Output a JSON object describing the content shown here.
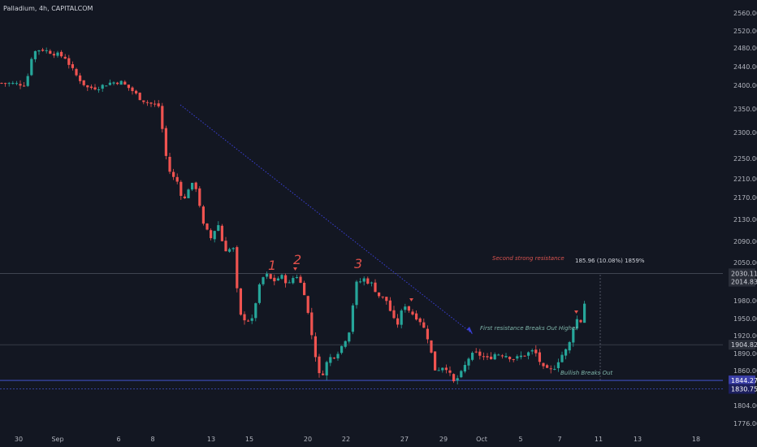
{
  "header": {
    "title": "Palladium, 4h, CAPITALCOM"
  },
  "chart_data": {
    "type": "candlestick",
    "title": "Palladium, 4h, CAPITALCOM",
    "ylim": [
      1758,
      2570
    ],
    "y_ticks": [
      "2560.00",
      "2520.00",
      "2480.00",
      "2440.00",
      "2400.00",
      "2350.00",
      "2300.00",
      "2250.00",
      "2210.00",
      "2170.00",
      "2130.00",
      "2090.00",
      "2050.00",
      "1980.00",
      "1950.00",
      "1920.00",
      "1890.00",
      "1860.00",
      "1804.00",
      "1776.00"
    ],
    "x_ticks": [
      "30",
      "Sep",
      "6",
      "8",
      "13",
      "15",
      "20",
      "22",
      "27",
      "29",
      "Oct",
      "5",
      "7",
      "11",
      "13",
      "18"
    ],
    "levels": {
      "resistance_top": "2030.11",
      "current_price": "2014.83",
      "first_resistance": "1904.82",
      "support_upper": "1844.27",
      "support_lower": "1830.75"
    },
    "annotations": {
      "wave_1": "1",
      "wave_2": "2",
      "wave_3": "3",
      "second_resistance": "Second strong resistance",
      "first_resistance": "First resistance Breaks Out Higher",
      "bullish": "Bullish Breaks Out",
      "measure": "185.96 (10.08%) 1859%"
    },
    "colors": {
      "up": "#26a69a",
      "down": "#ef5350",
      "background": "#131722",
      "trendline": "#3a3fd4",
      "support": "#4a5ee8"
    }
  }
}
